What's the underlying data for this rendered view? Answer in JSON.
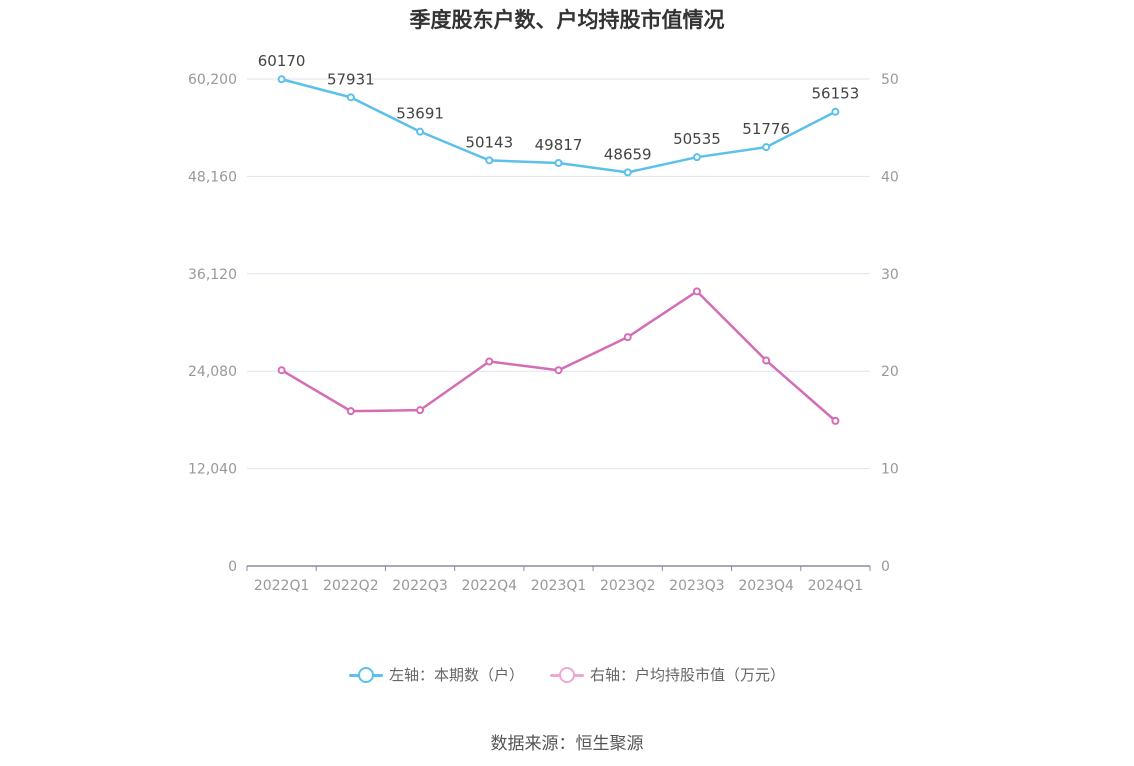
{
  "chart_data": {
    "type": "line",
    "title": "季度股东户数、户均持股市值情况",
    "categories": [
      "2022Q1",
      "2022Q2",
      "2022Q3",
      "2022Q4",
      "2023Q1",
      "2023Q2",
      "2023Q3",
      "2023Q4",
      "2024Q1"
    ],
    "series": [
      {
        "name": "左轴：本期数（户）",
        "axis": "left",
        "color": "#5bc0eb",
        "values": [
          60170,
          57931,
          53691,
          50143,
          49817,
          48659,
          50535,
          51776,
          56153
        ],
        "show_labels": true
      },
      {
        "name": "右轴：户均持股市值（万元）",
        "axis": "right",
        "color": "#d46db5",
        "legend_color": "#f0a8d0",
        "values": [
          20.1,
          15.9,
          16.0,
          21.0,
          20.1,
          23.5,
          28.2,
          21.1,
          14.9
        ],
        "show_labels": false
      }
    ],
    "y_left": {
      "min": 0,
      "max": 60200,
      "ticks": [
        "0",
        "12,040",
        "24,080",
        "36,120",
        "48,160",
        "60,200"
      ]
    },
    "y_right": {
      "min": 0,
      "max": 50,
      "ticks": [
        "0",
        "10",
        "20",
        "30",
        "40",
        "50"
      ]
    },
    "grid": true,
    "legend_position": "bottom-center"
  },
  "source_text": "数据来源：恒生聚源"
}
